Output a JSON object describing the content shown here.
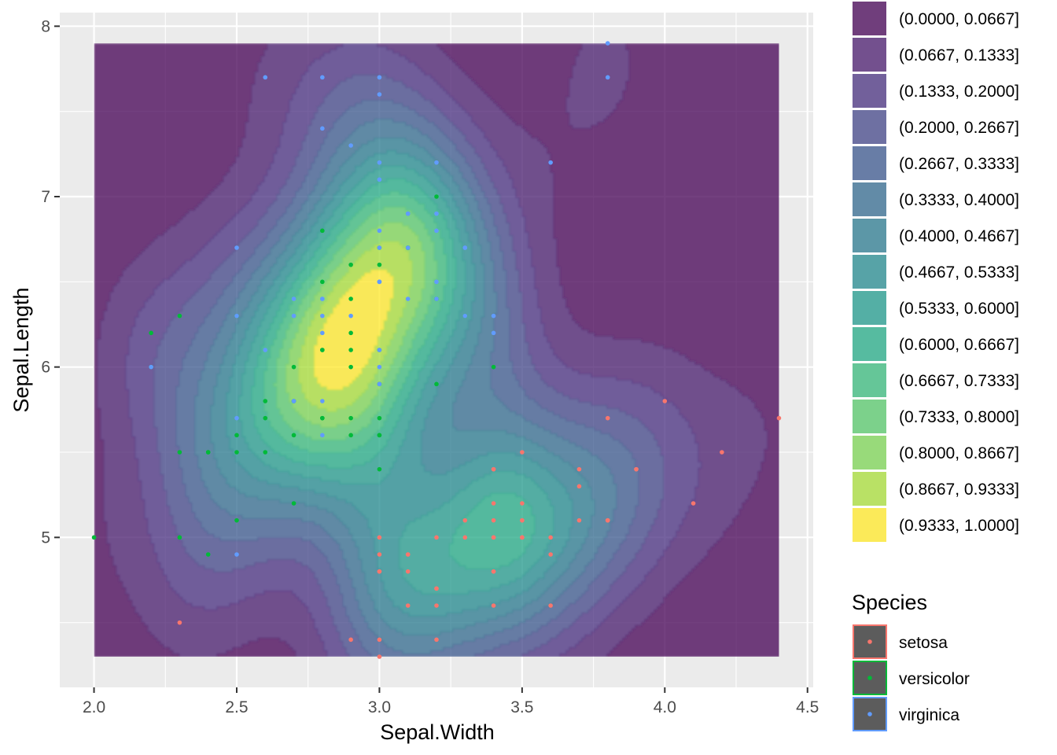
{
  "chart_data": {
    "type": "density2d_filled_scatter",
    "xlabel": "Sepal.Width",
    "ylabel": "Sepal.Length",
    "xlim": [
      1.88,
      4.52
    ],
    "ylim": [
      4.12,
      8.08
    ],
    "x_ticks": [
      "2.0",
      "2.5",
      "3.0",
      "3.5",
      "4.0",
      "4.5"
    ],
    "x_tick_values": [
      2.0,
      2.5,
      3.0,
      3.5,
      4.0,
      4.5
    ],
    "y_ticks": [
      "5",
      "6",
      "7",
      "8"
    ],
    "y_tick_values": [
      5,
      6,
      7,
      8
    ],
    "grid": true,
    "density_extent": {
      "x": [
        2.0,
        4.4
      ],
      "y": [
        4.3,
        7.9
      ]
    },
    "density_peaks": [
      {
        "x": 2.95,
        "y": 6.25,
        "level": 1.0
      },
      {
        "x": 3.4,
        "y": 5.0,
        "level": 0.72
      },
      {
        "x": 3.8,
        "y": 7.8,
        "level": 0.12
      }
    ],
    "fill_legend": {
      "levels": [
        {
          "label": "(0.0000, 0.0667]",
          "color": "#440154"
        },
        {
          "label": "(0.0667, 0.1333]",
          "color": "#481A6C"
        },
        {
          "label": "(0.1333, 0.2000]",
          "color": "#472F7D"
        },
        {
          "label": "(0.2000, 0.2667]",
          "color": "#414487"
        },
        {
          "label": "(0.2667, 0.3333]",
          "color": "#39568C"
        },
        {
          "label": "(0.3333, 0.4000]",
          "color": "#31688E"
        },
        {
          "label": "(0.4000, 0.4667]",
          "color": "#2A788E"
        },
        {
          "label": "(0.4667, 0.5333]",
          "color": "#23888E"
        },
        {
          "label": "(0.5333, 0.6000]",
          "color": "#1F988B"
        },
        {
          "label": "(0.6000, 0.6667]",
          "color": "#22A884"
        },
        {
          "label": "(0.6667, 0.7333]",
          "color": "#35B779"
        },
        {
          "label": "(0.7333, 0.8000]",
          "color": "#54C568"
        },
        {
          "label": "(0.8000, 0.8667]",
          "color": "#7AD151"
        },
        {
          "label": "(0.8667, 0.9333]",
          "color": "#A5DB36"
        },
        {
          "label": "(0.9333, 1.0000]",
          "color": "#FDE725"
        }
      ],
      "alpha": 0.75
    },
    "color_legend": {
      "title": "Species",
      "items": [
        {
          "label": "setosa",
          "color": "#F8766D"
        },
        {
          "label": "versicolor",
          "color": "#00BA38"
        },
        {
          "label": "virginica",
          "color": "#619CFF"
        }
      ]
    },
    "series": [
      {
        "name": "setosa",
        "color": "#F8766D",
        "points": [
          [
            3.5,
            5.1
          ],
          [
            3.0,
            4.9
          ],
          [
            3.2,
            4.7
          ],
          [
            3.1,
            4.6
          ],
          [
            3.6,
            5.0
          ],
          [
            3.9,
            5.4
          ],
          [
            3.4,
            4.6
          ],
          [
            3.4,
            5.0
          ],
          [
            2.9,
            4.4
          ],
          [
            3.1,
            4.9
          ],
          [
            3.7,
            5.4
          ],
          [
            3.4,
            4.8
          ],
          [
            3.0,
            4.8
          ],
          [
            3.0,
            4.3
          ],
          [
            4.0,
            5.8
          ],
          [
            4.4,
            5.7
          ],
          [
            3.9,
            5.4
          ],
          [
            3.5,
            5.1
          ],
          [
            3.8,
            5.7
          ],
          [
            3.8,
            5.1
          ],
          [
            3.4,
            5.4
          ],
          [
            3.7,
            5.1
          ],
          [
            3.6,
            4.6
          ],
          [
            3.3,
            5.1
          ],
          [
            3.4,
            4.8
          ],
          [
            3.0,
            5.0
          ],
          [
            3.4,
            5.0
          ],
          [
            3.5,
            5.2
          ],
          [
            3.4,
            5.2
          ],
          [
            3.2,
            4.7
          ],
          [
            3.1,
            4.8
          ],
          [
            3.4,
            5.4
          ],
          [
            4.1,
            5.2
          ],
          [
            4.2,
            5.5
          ],
          [
            3.1,
            4.9
          ],
          [
            3.2,
            5.0
          ],
          [
            3.5,
            5.5
          ],
          [
            3.6,
            4.9
          ],
          [
            3.0,
            4.4
          ],
          [
            3.4,
            5.1
          ],
          [
            3.5,
            5.0
          ],
          [
            2.3,
            4.5
          ],
          [
            3.2,
            4.4
          ],
          [
            3.5,
            5.0
          ],
          [
            3.8,
            5.1
          ],
          [
            3.0,
            4.8
          ],
          [
            3.8,
            5.1
          ],
          [
            3.2,
            4.6
          ],
          [
            3.7,
            5.3
          ],
          [
            3.3,
            5.0
          ]
        ]
      },
      {
        "name": "versicolor",
        "color": "#00BA38",
        "points": [
          [
            3.2,
            7.0
          ],
          [
            3.2,
            6.4
          ],
          [
            3.1,
            6.9
          ],
          [
            2.3,
            5.5
          ],
          [
            2.8,
            6.5
          ],
          [
            2.8,
            5.7
          ],
          [
            3.3,
            6.3
          ],
          [
            2.4,
            4.9
          ],
          [
            2.9,
            6.6
          ],
          [
            2.7,
            5.2
          ],
          [
            2.0,
            5.0
          ],
          [
            3.0,
            5.9
          ],
          [
            2.2,
            6.0
          ],
          [
            2.9,
            6.1
          ],
          [
            2.9,
            5.6
          ],
          [
            3.1,
            6.7
          ],
          [
            3.0,
            5.6
          ],
          [
            2.7,
            5.8
          ],
          [
            2.2,
            6.2
          ],
          [
            2.5,
            5.6
          ],
          [
            3.2,
            5.9
          ],
          [
            2.8,
            6.1
          ],
          [
            2.5,
            6.3
          ],
          [
            2.8,
            6.1
          ],
          [
            2.9,
            6.4
          ],
          [
            3.0,
            6.6
          ],
          [
            2.8,
            6.8
          ],
          [
            3.0,
            6.7
          ],
          [
            2.9,
            6.0
          ],
          [
            2.6,
            5.7
          ],
          [
            2.4,
            5.5
          ],
          [
            2.4,
            5.5
          ],
          [
            2.7,
            5.8
          ],
          [
            2.7,
            6.0
          ],
          [
            3.0,
            5.4
          ],
          [
            3.4,
            6.0
          ],
          [
            3.1,
            6.7
          ],
          [
            2.3,
            6.3
          ],
          [
            3.0,
            5.6
          ],
          [
            2.5,
            5.5
          ],
          [
            2.6,
            5.5
          ],
          [
            3.0,
            6.1
          ],
          [
            2.6,
            5.8
          ],
          [
            2.3,
            5.0
          ],
          [
            2.7,
            5.6
          ],
          [
            3.0,
            5.7
          ],
          [
            2.9,
            5.7
          ],
          [
            2.9,
            6.2
          ],
          [
            2.5,
            5.1
          ],
          [
            2.8,
            5.7
          ]
        ]
      },
      {
        "name": "virginica",
        "color": "#619CFF",
        "points": [
          [
            3.3,
            6.3
          ],
          [
            2.7,
            5.8
          ],
          [
            3.0,
            7.1
          ],
          [
            2.9,
            6.3
          ],
          [
            3.0,
            6.5
          ],
          [
            3.0,
            7.6
          ],
          [
            2.5,
            4.9
          ],
          [
            2.9,
            7.3
          ],
          [
            2.5,
            6.7
          ],
          [
            3.6,
            7.2
          ],
          [
            3.2,
            6.5
          ],
          [
            2.7,
            6.4
          ],
          [
            3.0,
            6.8
          ],
          [
            2.5,
            5.7
          ],
          [
            2.8,
            5.8
          ],
          [
            3.2,
            6.4
          ],
          [
            3.0,
            6.5
          ],
          [
            3.8,
            7.7
          ],
          [
            2.6,
            7.7
          ],
          [
            2.2,
            6.0
          ],
          [
            3.2,
            6.9
          ],
          [
            2.8,
            5.6
          ],
          [
            2.8,
            7.7
          ],
          [
            2.7,
            6.3
          ],
          [
            3.3,
            6.7
          ],
          [
            3.2,
            7.2
          ],
          [
            2.8,
            6.2
          ],
          [
            3.0,
            6.1
          ],
          [
            2.8,
            6.4
          ],
          [
            3.0,
            7.2
          ],
          [
            2.8,
            7.4
          ],
          [
            3.8,
            7.9
          ],
          [
            2.8,
            6.4
          ],
          [
            2.8,
            6.3
          ],
          [
            2.6,
            6.1
          ],
          [
            3.0,
            7.7
          ],
          [
            3.4,
            6.3
          ],
          [
            3.1,
            6.4
          ],
          [
            3.0,
            6.0
          ],
          [
            3.1,
            6.9
          ],
          [
            3.1,
            6.7
          ],
          [
            3.1,
            6.9
          ],
          [
            2.7,
            5.8
          ],
          [
            3.2,
            6.8
          ],
          [
            3.3,
            6.7
          ],
          [
            3.0,
            6.7
          ],
          [
            2.5,
            6.3
          ],
          [
            3.0,
            6.5
          ],
          [
            3.4,
            6.2
          ],
          [
            3.0,
            5.9
          ]
        ]
      }
    ]
  }
}
